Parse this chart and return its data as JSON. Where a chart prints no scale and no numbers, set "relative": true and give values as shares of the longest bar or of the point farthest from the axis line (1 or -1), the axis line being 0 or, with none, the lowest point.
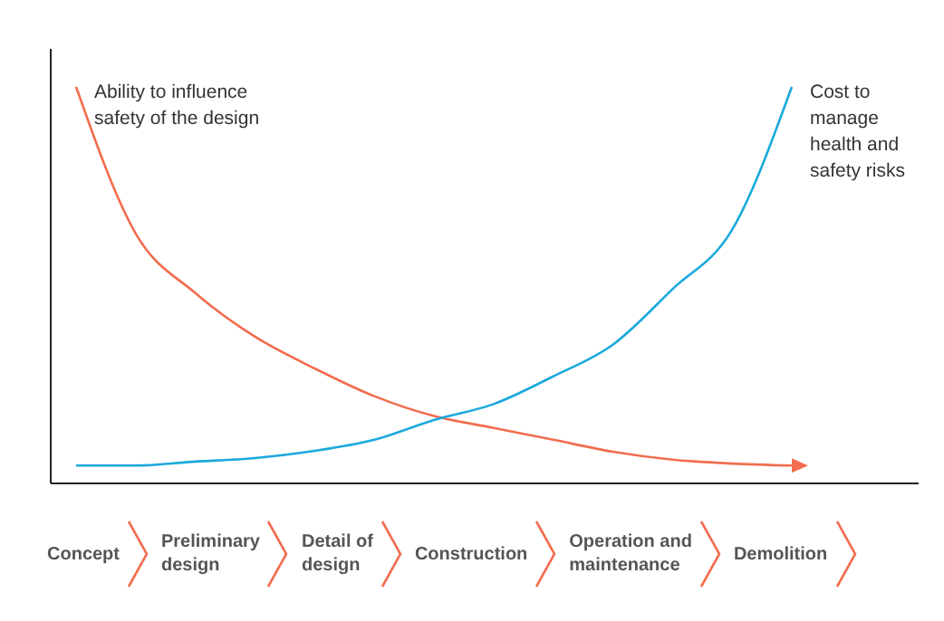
{
  "chart_data": {
    "type": "line",
    "relative": true,
    "legend": false,
    "grid": false,
    "marker": "none",
    "line_style": "solid",
    "categories": [
      null,
      null,
      null,
      null,
      null,
      null,
      null,
      null,
      null,
      null,
      null,
      null,
      null
    ],
    "series": [
      {
        "name": "Ability to influence safety of the design",
        "color": "#f26d4f",
        "values": [
          1.0,
          0.63,
          0.48,
          0.37,
          0.29,
          0.22,
          0.17,
          0.14,
          0.11,
          0.08,
          0.06,
          0.05,
          0.045
        ]
      },
      {
        "name": "Cost to manage health and safety risks",
        "color": "#1ba9dc",
        "values": [
          0.045,
          0.045,
          0.055,
          0.064,
          0.082,
          0.11,
          0.16,
          0.2,
          0.27,
          0.35,
          0.49,
          0.64,
          1.0
        ]
      }
    ],
    "annotations": [
      "Concept",
      "Preliminary design",
      "Detail of design",
      "Construction",
      "Operation and maintenance",
      "Demolition"
    ]
  }
}
